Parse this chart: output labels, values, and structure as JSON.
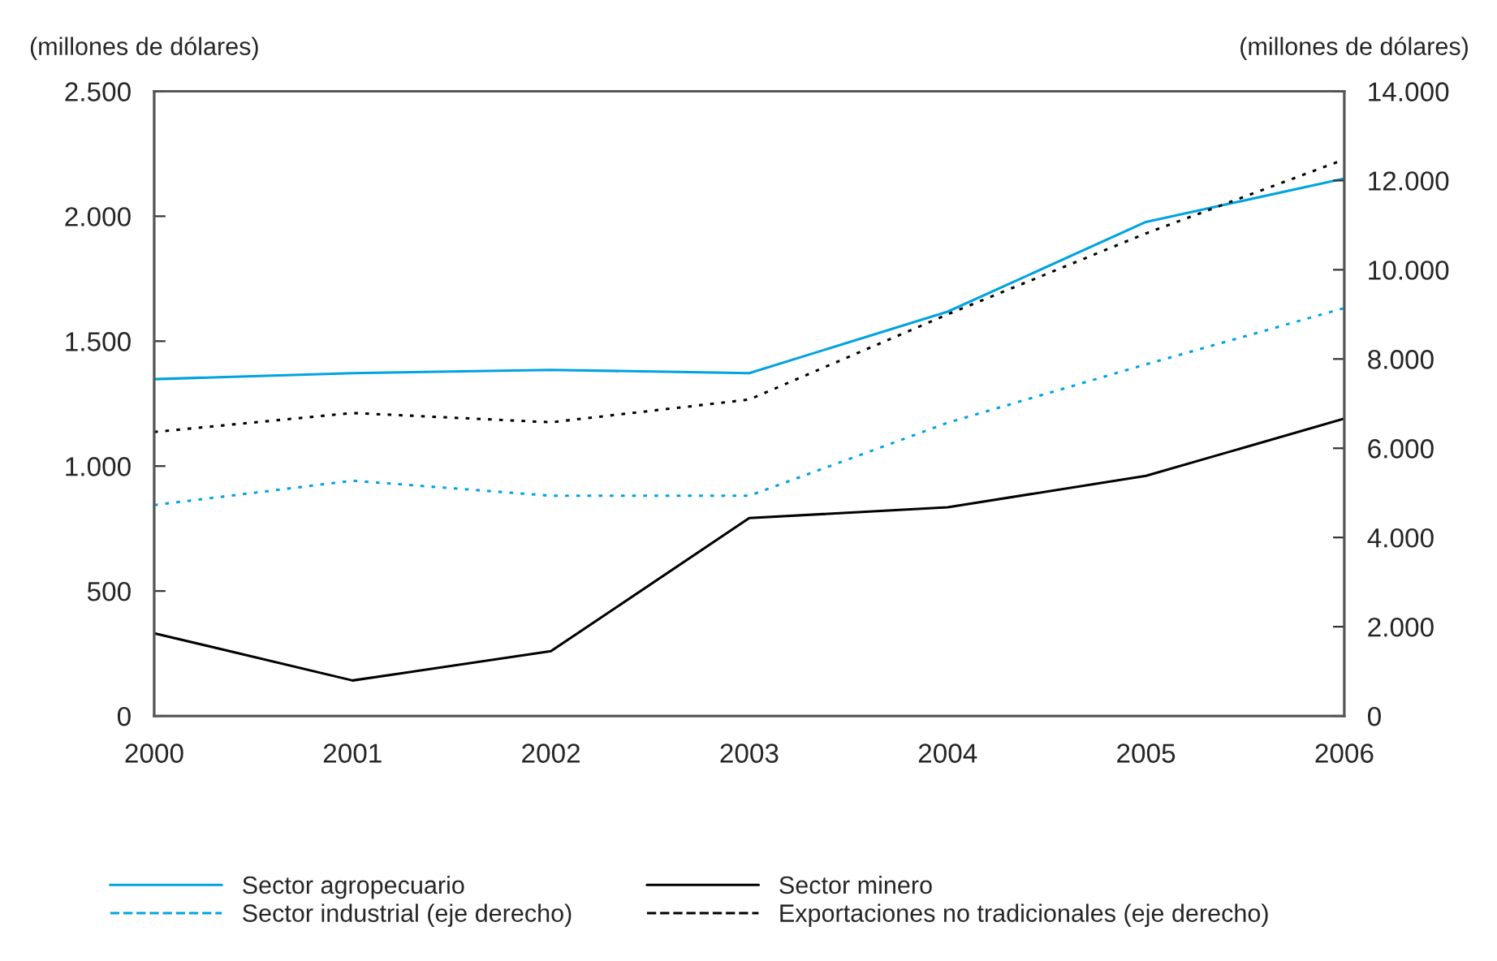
{
  "chart_data": {
    "type": "line",
    "ylabel": "(millones de dólares)",
    "y2label": "(millones de dólares)",
    "categories": [
      "2000",
      "2001",
      "2002",
      "2003",
      "2004",
      "2005",
      "2006"
    ],
    "series": [
      {
        "name": "Sector agropecuario",
        "color": "#00a3e0",
        "line_style": "solid",
        "values": [
          1348,
          1372,
          1385,
          1372,
          1618,
          1977,
          2151
        ]
      },
      {
        "name": "Sector minero",
        "color": "#000000",
        "line_style": "solid",
        "values": [
          331,
          142,
          259,
          792,
          835,
          961,
          1190
        ]
      },
      {
        "name": "Sector industrial (eje derecho)",
        "color": "#00a3e0",
        "line_style": "dotted",
        "axis": "y2",
        "values": [
          4727,
          5273,
          4935,
          4935,
          6571,
          7880,
          9142
        ]
      },
      {
        "name": "Exportaciones no tradicionales (eje derecho)",
        "color": "#000000",
        "line_style": "dotted",
        "axis": "y2",
        "values": [
          6364,
          6790,
          6582,
          7091,
          9000,
          10815,
          12473
        ]
      }
    ],
    "ylim": [
      0,
      2500
    ],
    "yticks": [
      0,
      500,
      {
        "value": 1000,
        "label": "1.000"
      },
      {
        "value": 1500,
        "label": "1.500"
      },
      {
        "value": 2000,
        "label": "2.000"
      },
      {
        "value": 2500,
        "label": "2.500"
      }
    ],
    "y2lim": [
      0,
      14000
    ],
    "y2ticks": [
      0,
      {
        "value": 2000,
        "label": "2.000"
      },
      {
        "value": 4000,
        "label": "4.000"
      },
      {
        "value": 6000,
        "label": "6.000"
      },
      {
        "value": 8000,
        "label": "8.000"
      },
      {
        "value": 10000,
        "label": "10.000"
      },
      {
        "value": 12000,
        "label": "12.000"
      },
      {
        "value": 14000,
        "label": "14.000"
      }
    ],
    "grid": false,
    "legend": "bottom",
    "marker": "none"
  }
}
